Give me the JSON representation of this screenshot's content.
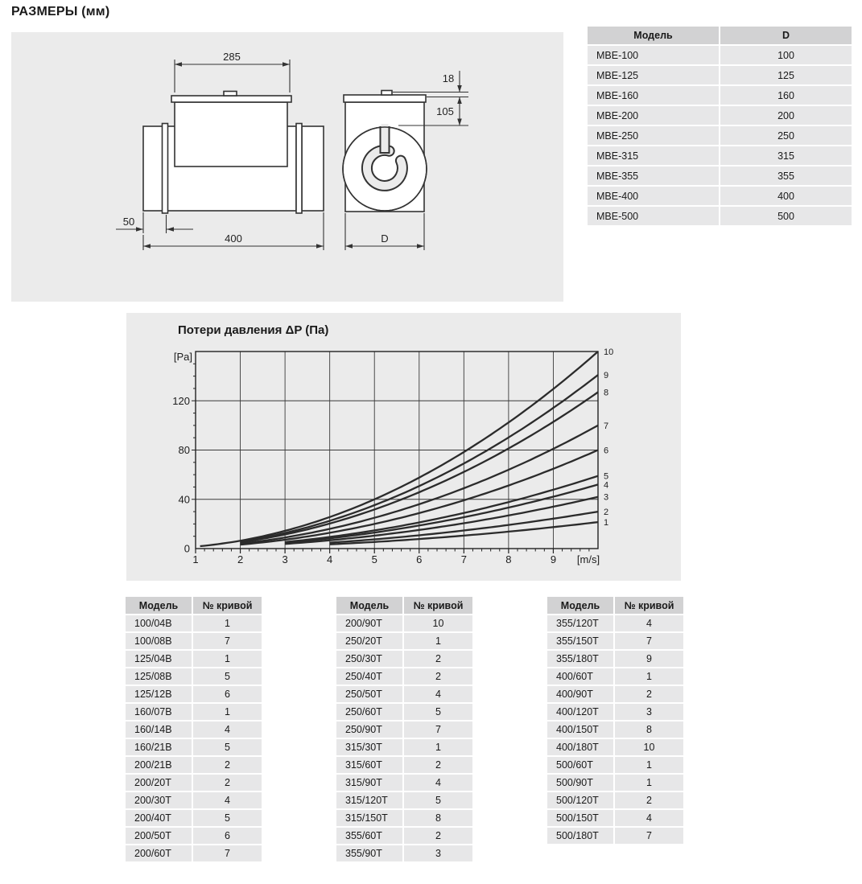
{
  "page": {
    "title": "РАЗМЕРЫ (мм)"
  },
  "diagram": {
    "dims": {
      "width_top": "285",
      "cap_height": "18",
      "box_height": "105",
      "spigot_length": "50",
      "total_length": "400",
      "diameter": "D"
    }
  },
  "model_table": {
    "headers": [
      "Модель",
      "D"
    ],
    "rows": [
      [
        "МВЕ-100",
        "100"
      ],
      [
        "МВЕ-125",
        "125"
      ],
      [
        "МВЕ-160",
        "160"
      ],
      [
        "МВЕ-200",
        "200"
      ],
      [
        "МВЕ-250",
        "250"
      ],
      [
        "МВЕ-315",
        "315"
      ],
      [
        "МВЕ-355",
        "355"
      ],
      [
        "МВЕ-400",
        "400"
      ],
      [
        "МВЕ-500",
        "500"
      ]
    ]
  },
  "chart_data": {
    "type": "line",
    "title": "Потери давления ΔP (Па)",
    "y_unit": "[Pa]",
    "x_unit": "[m/s]",
    "x_ticks": [
      1,
      2,
      3,
      4,
      5,
      6,
      7,
      8,
      9
    ],
    "y_ticks": [
      0,
      40,
      80,
      120
    ],
    "x_range": [
      1,
      10
    ],
    "y_range": [
      0,
      160
    ],
    "grid": true,
    "legend_position": "right-edge-curve-numbers",
    "model": "dP = k * v^2 [Pa], v in m/s",
    "curves": [
      {
        "label": "1",
        "k": 0.215,
        "v_start": 4.0,
        "end_value_pa": 21.5
      },
      {
        "label": "2",
        "k": 0.3,
        "v_start": 4.0,
        "end_value_pa": 30
      },
      {
        "label": "3",
        "k": 0.42,
        "v_start": 3.0,
        "end_value_pa": 42
      },
      {
        "label": "4",
        "k": 0.52,
        "v_start": 3.0,
        "end_value_pa": 52
      },
      {
        "label": "5",
        "k": 0.59,
        "v_start": 3.0,
        "end_value_pa": 59
      },
      {
        "label": "6",
        "k": 0.8,
        "v_start": 2.0,
        "end_value_pa": 80
      },
      {
        "label": "7",
        "k": 1.0,
        "v_start": 2.0,
        "end_value_pa": 100
      },
      {
        "label": "8",
        "k": 1.27,
        "v_start": 2.0,
        "end_value_pa": 127
      },
      {
        "label": "9",
        "k": 1.41,
        "v_start": 2.0,
        "end_value_pa": 141
      },
      {
        "label": "10",
        "k": 1.6,
        "v_start": 1.1,
        "end_value_pa": 160
      }
    ]
  },
  "curve_tables": [
    {
      "headers": [
        "Модель",
        "№ кривой"
      ],
      "rows": [
        [
          "100/04В",
          "1"
        ],
        [
          "100/08В",
          "7"
        ],
        [
          "125/04В",
          "1"
        ],
        [
          "125/08В",
          "5"
        ],
        [
          "125/12В",
          "6"
        ],
        [
          "160/07В",
          "1"
        ],
        [
          "160/14В",
          "4"
        ],
        [
          "160/21В",
          "5"
        ],
        [
          "200/21В",
          "2"
        ],
        [
          "200/20Т",
          "2"
        ],
        [
          "200/30Т",
          "4"
        ],
        [
          "200/40Т",
          "5"
        ],
        [
          "200/50Т",
          "6"
        ],
        [
          "200/60Т",
          "7"
        ]
      ]
    },
    {
      "headers": [
        "Модель",
        "№ кривой"
      ],
      "rows": [
        [
          "200/90Т",
          "10"
        ],
        [
          "250/20Т",
          "1"
        ],
        [
          "250/30Т",
          "2"
        ],
        [
          "250/40Т",
          "2"
        ],
        [
          "250/50Т",
          "4"
        ],
        [
          "250/60Т",
          "5"
        ],
        [
          "250/90Т",
          "7"
        ],
        [
          "315/30Т",
          "1"
        ],
        [
          "315/60Т",
          "2"
        ],
        [
          "315/90Т",
          "4"
        ],
        [
          "315/120Т",
          "5"
        ],
        [
          "315/150Т",
          "8"
        ],
        [
          "355/60Т",
          "2"
        ],
        [
          "355/90Т",
          "3"
        ]
      ]
    },
    {
      "headers": [
        "Модель",
        "№ кривой"
      ],
      "rows": [
        [
          "355/120Т",
          "4"
        ],
        [
          "355/150Т",
          "7"
        ],
        [
          "355/180Т",
          "9"
        ],
        [
          "400/60Т",
          "1"
        ],
        [
          "400/90Т",
          "2"
        ],
        [
          "400/120Т",
          "3"
        ],
        [
          "400/150Т",
          "8"
        ],
        [
          "400/180Т",
          "10"
        ],
        [
          "500/60Т",
          "1"
        ],
        [
          "500/90Т",
          "1"
        ],
        [
          "500/120Т",
          "2"
        ],
        [
          "500/150Т",
          "4"
        ],
        [
          "500/180Т",
          "7"
        ]
      ]
    }
  ]
}
